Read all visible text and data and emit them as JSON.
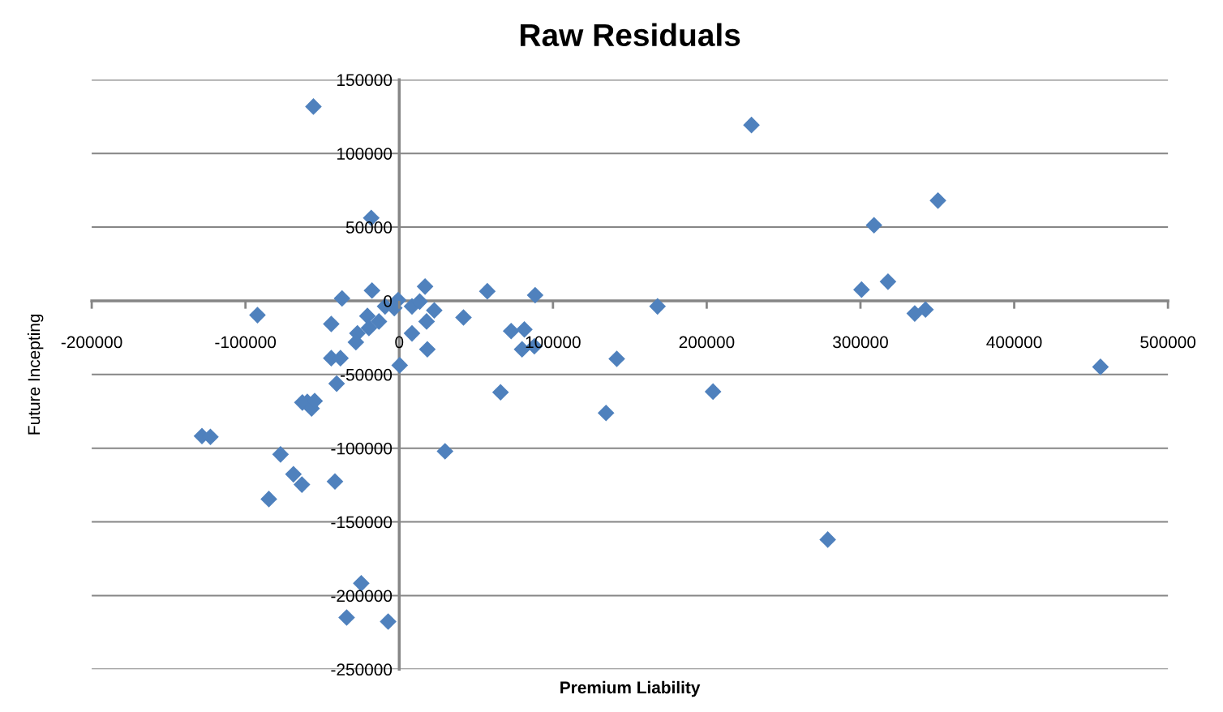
{
  "chart_data": {
    "type": "scatter",
    "title": "Raw Residuals",
    "xlabel": "Premium Liability",
    "ylabel": "Future Incepting",
    "xlim": [
      -200000,
      500000
    ],
    "xticks": [
      -200000,
      -100000,
      0,
      100000,
      200000,
      300000,
      400000,
      500000
    ],
    "ylim": [
      -250000,
      150000
    ],
    "yticks": [
      -250000,
      -200000,
      -150000,
      -100000,
      -50000,
      0,
      50000,
      100000,
      150000
    ],
    "grid": "y",
    "marker": "diamond",
    "series": [
      {
        "color": "#4f81bd",
        "x": [
          -55800,
          229100,
          350400,
          308800,
          -18200,
          300700,
          317900,
          335300,
          342300,
          456100,
          278700,
          204100,
          134500,
          141500,
          168000,
          88400,
          57300,
          41800,
          72800,
          81400,
          79900,
          87900,
          65900,
          29800,
          22800,
          17800,
          18300,
          16800,
          8300,
          8300,
          -92200,
          -37200,
          -44200,
          -17700,
          -9200,
          -700,
          -3200,
          13300,
          300,
          -20700,
          -13200,
          -19700,
          -27200,
          -28200,
          -44200,
          -38200,
          -40700,
          -59800,
          -63000,
          -57000,
          -55000,
          -128300,
          -122800,
          -77200,
          -68800,
          -63300,
          -41800,
          -84800,
          -24700,
          -34200,
          -7200
        ],
        "values": [
          131800,
          119300,
          68000,
          51300,
          56200,
          7600,
          13000,
          -8600,
          -5900,
          -44800,
          -162000,
          -61600,
          -76100,
          -39400,
          -3800,
          3800,
          6500,
          -11300,
          -20500,
          -19400,
          -32900,
          -30800,
          -62100,
          -102100,
          -6500,
          -14000,
          -32900,
          9700,
          -3800,
          -22100,
          -9700,
          1600,
          -15700,
          7000,
          -3800,
          500,
          -4900,
          -500,
          -43700,
          -10300,
          -14000,
          -18400,
          -22100,
          -28100,
          -38900,
          -38900,
          -56200,
          -68600,
          -69000,
          -73000,
          -68000,
          -91800,
          -92300,
          -104200,
          -117700,
          -124700,
          -122600,
          -134500,
          -191700,
          -214900,
          -217600
        ]
      }
    ]
  }
}
